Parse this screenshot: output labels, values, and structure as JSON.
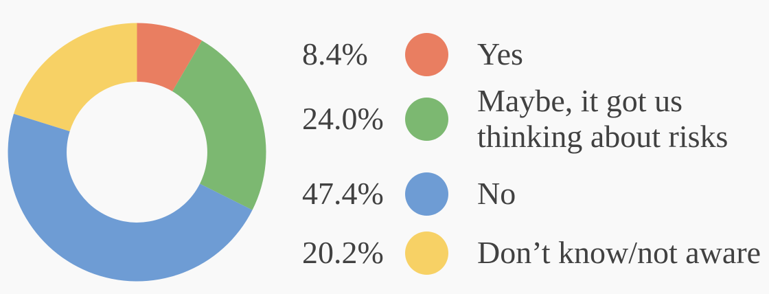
{
  "colors": {
    "background": "#F9F9F9",
    "text": "#414141"
  },
  "chart_data": {
    "type": "pie",
    "subtype": "donut",
    "title": "",
    "legend_position": "right",
    "donut_hole_ratio": 0.545,
    "start_angle_deg": 0,
    "direction": "clockwise",
    "series": [
      {
        "label": "Yes",
        "value_pct": 8.4,
        "display_pct": "8.4%",
        "color": "#E97E61"
      },
      {
        "label": "Maybe, it got us thinking about risks",
        "value_pct": 24.0,
        "display_pct": "24.0%",
        "color": "#7CB871"
      },
      {
        "label": "No",
        "value_pct": 47.4,
        "display_pct": "47.4%",
        "color": "#6E9CD4"
      },
      {
        "label": "Don’t know/not aware",
        "value_pct": 20.2,
        "display_pct": "20.2%",
        "color": "#F7D165"
      }
    ]
  }
}
